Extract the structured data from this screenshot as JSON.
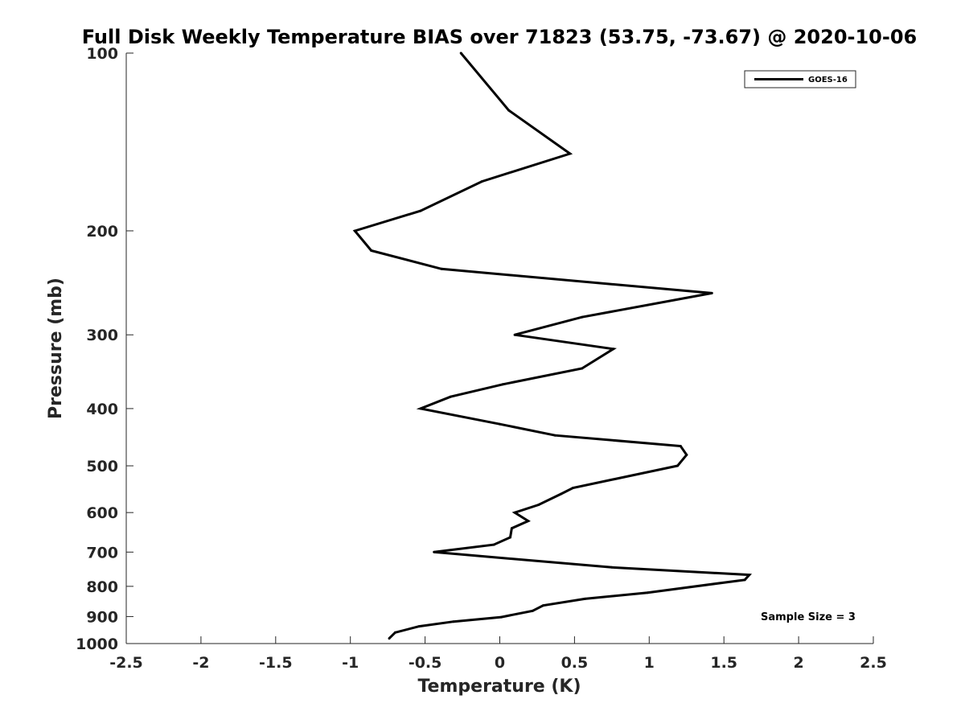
{
  "chart_data": {
    "type": "line",
    "title": "Full Disk Weekly Temperature BIAS over 71823 (53.75, -73.67) @ 2020-10-06",
    "xlabel": "Temperature (K)",
    "ylabel": "Pressure (mb)",
    "xlim": [
      -2.5,
      2.5
    ],
    "ylim": [
      100,
      1000
    ],
    "y_scale": "log",
    "y_reversed": true,
    "x_ticks": [
      -2.5,
      -2,
      -1.5,
      -1,
      -0.5,
      0,
      0.5,
      1,
      1.5,
      2,
      2.5
    ],
    "x_tick_labels": [
      "-2.5",
      "-2",
      "-1.5",
      "-1",
      "-0.5",
      "0",
      "0.5",
      "1",
      "1.5",
      "2",
      "2.5"
    ],
    "y_ticks": [
      100,
      200,
      300,
      400,
      500,
      600,
      700,
      800,
      900,
      1000
    ],
    "y_tick_labels": [
      "100",
      "200",
      "300",
      "400",
      "500",
      "600",
      "700",
      "800",
      "900",
      "1000"
    ],
    "grid": false,
    "legend_position": "top-right",
    "series": [
      {
        "name": "GOES-16",
        "color": "#000000",
        "points": [
          {
            "x": -0.26,
            "y": 100
          },
          {
            "x": 0.06,
            "y": 125
          },
          {
            "x": 0.47,
            "y": 148
          },
          {
            "x": -0.12,
            "y": 165
          },
          {
            "x": -0.53,
            "y": 185
          },
          {
            "x": -0.97,
            "y": 200
          },
          {
            "x": -0.86,
            "y": 216
          },
          {
            "x": -0.39,
            "y": 232
          },
          {
            "x": 1.42,
            "y": 255
          },
          {
            "x": 0.55,
            "y": 280
          },
          {
            "x": 0.1,
            "y": 300
          },
          {
            "x": 0.76,
            "y": 317
          },
          {
            "x": 0.55,
            "y": 342
          },
          {
            "x": 0.02,
            "y": 364
          },
          {
            "x": -0.33,
            "y": 382
          },
          {
            "x": -0.53,
            "y": 400
          },
          {
            "x": 0.0,
            "y": 425
          },
          {
            "x": 0.37,
            "y": 444
          },
          {
            "x": 1.21,
            "y": 463
          },
          {
            "x": 1.25,
            "y": 479
          },
          {
            "x": 1.19,
            "y": 500
          },
          {
            "x": 0.49,
            "y": 545
          },
          {
            "x": 0.41,
            "y": 558
          },
          {
            "x": 0.26,
            "y": 582
          },
          {
            "x": 0.1,
            "y": 600
          },
          {
            "x": 0.19,
            "y": 620
          },
          {
            "x": 0.08,
            "y": 638
          },
          {
            "x": 0.07,
            "y": 661
          },
          {
            "x": -0.04,
            "y": 680
          },
          {
            "x": -0.44,
            "y": 700
          },
          {
            "x": 0.75,
            "y": 743
          },
          {
            "x": 1.67,
            "y": 765
          },
          {
            "x": 1.64,
            "y": 780
          },
          {
            "x": 0.99,
            "y": 820
          },
          {
            "x": 0.57,
            "y": 840
          },
          {
            "x": 0.29,
            "y": 862
          },
          {
            "x": 0.22,
            "y": 880
          },
          {
            "x": 0.01,
            "y": 902
          },
          {
            "x": -0.31,
            "y": 918
          },
          {
            "x": -0.54,
            "y": 935
          },
          {
            "x": -0.7,
            "y": 958
          },
          {
            "x": -0.74,
            "y": 980
          }
        ]
      }
    ],
    "annotations": [
      {
        "text": "Sample Size = 3",
        "location": "bottom-right"
      }
    ]
  }
}
